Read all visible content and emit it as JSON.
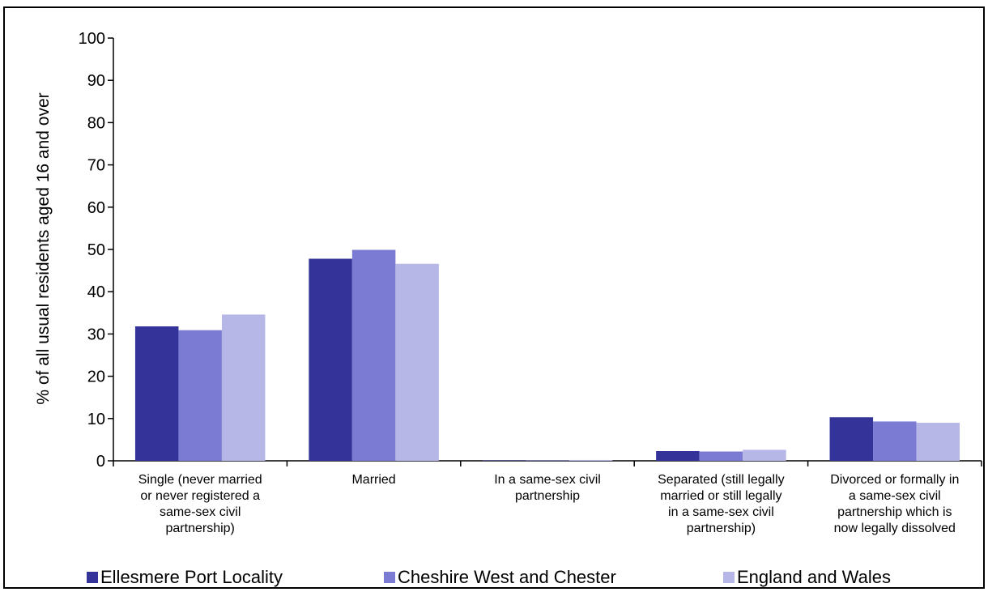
{
  "chart_data": {
    "type": "bar",
    "ylabel": "% of all usual residents aged 16 and over",
    "ylim": [
      0,
      100
    ],
    "yticks": [
      "0",
      "10",
      "20",
      "30",
      "40",
      "50",
      "60",
      "70",
      "80",
      "90",
      "100"
    ],
    "grid": false,
    "legend_position": "bottom",
    "categories": [
      [
        "Single (never married",
        "or never registered a",
        "same-sex civil",
        "partnership)"
      ],
      [
        "Married"
      ],
      [
        "In a same-sex civil",
        "partnership"
      ],
      [
        "Separated (still legally",
        "married or still legally",
        "in a same-sex civil",
        "partnership)"
      ],
      [
        "Divorced or formally in",
        "a same-sex civil",
        "partnership which is",
        "now legally dissolved"
      ]
    ],
    "series": [
      {
        "name": "Ellesmere Port Locality",
        "color": "#333399",
        "values": [
          31.8,
          47.8,
          0.1,
          2.3,
          10.3
        ]
      },
      {
        "name": "Cheshire West and Chester",
        "color": "#7b7bd3",
        "values": [
          30.9,
          49.9,
          0.1,
          2.2,
          9.3
        ]
      },
      {
        "name": "England and Wales",
        "color": "#b7b7e7",
        "values": [
          34.6,
          46.6,
          0.2,
          2.6,
          9.0
        ]
      }
    ]
  }
}
